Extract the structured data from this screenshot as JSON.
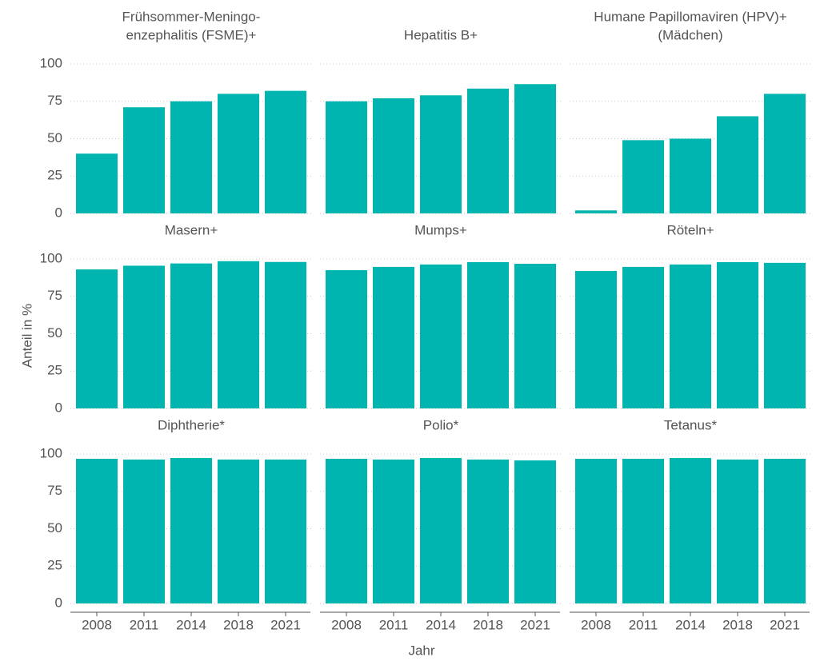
{
  "chart_data": {
    "type": "bar",
    "color": "#00b5b0",
    "categories": [
      "2008",
      "2011",
      "2014",
      "2018",
      "2021"
    ],
    "ylim": [
      0,
      100
    ],
    "yticks": [
      0,
      25,
      50,
      75,
      100
    ],
    "grid": true,
    "x_label": "Jahr",
    "y_label": "Anteil in %",
    "panels": [
      {
        "title": [
          "Frühsommer-Meningo-",
          "enzephalitis (FSME)+"
        ],
        "values": [
          40,
          71,
          75,
          80,
          82
        ]
      },
      {
        "title": [
          "Hepatitis B+"
        ],
        "values": [
          75,
          77,
          79,
          83.5,
          86.5
        ]
      },
      {
        "title": [
          "Humane Papillomaviren (HPV)+",
          "(Mädchen)"
        ],
        "values": [
          2,
          49,
          50,
          65,
          80
        ]
      },
      {
        "title": [
          "Masern+"
        ],
        "values": [
          93,
          95.5,
          97,
          98.5,
          98
        ]
      },
      {
        "title": [
          "Mumps+"
        ],
        "values": [
          92.5,
          94.7,
          96.3,
          97.9,
          96.8
        ]
      },
      {
        "title": [
          "Röteln+"
        ],
        "values": [
          92,
          94.7,
          96.3,
          97.9,
          97.4
        ]
      },
      {
        "title": [
          "Diphtherie*"
        ],
        "values": [
          96.8,
          96.3,
          97.3,
          96.3,
          96.3
        ]
      },
      {
        "title": [
          "Polio*"
        ],
        "values": [
          96.8,
          96.3,
          97.3,
          96.3,
          95.7
        ]
      },
      {
        "title": [
          "Tetanus*"
        ],
        "values": [
          96.8,
          96.8,
          97.3,
          96.3,
          96.8
        ]
      }
    ]
  }
}
